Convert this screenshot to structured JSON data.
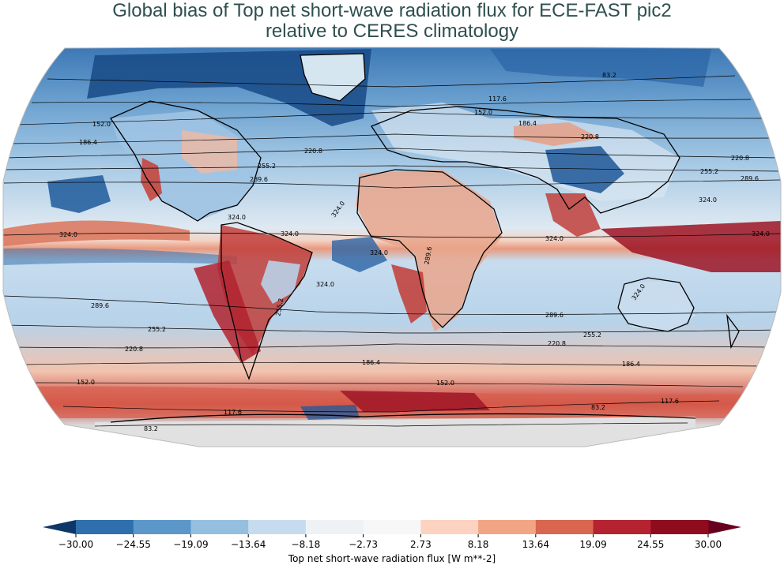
{
  "title": {
    "line1": "Global bias of Top net short-wave radiation flux for ECE-FAST pic2",
    "line2": "relative to CERES climatology"
  },
  "map": {
    "projection": "Robinson",
    "contour_labels": [
      "83.2",
      "117.6",
      "152.0",
      "186.4",
      "220.8",
      "255.2",
      "289.6",
      "324.0"
    ],
    "colormap": "RdBu_r"
  },
  "colorbar": {
    "label": "Top net short-wave radiation flux [W m**-2]",
    "ticks": [
      "−30.00",
      "−24.55",
      "−19.09",
      "−13.64",
      "−8.18",
      "−2.73",
      "2.73",
      "8.18",
      "13.64",
      "19.09",
      "24.55",
      "30.00"
    ],
    "colors": [
      "#1b4f8a",
      "#2f6fae",
      "#5c97c9",
      "#95bfdf",
      "#c6dcee",
      "#eef2f5",
      "#f7f7f7",
      "#fbd3c0",
      "#f2a585",
      "#d9664f",
      "#b52331",
      "#8f0c1f",
      "#67001f"
    ],
    "under_color": "#0d3766",
    "over_color": "#67001f"
  }
}
